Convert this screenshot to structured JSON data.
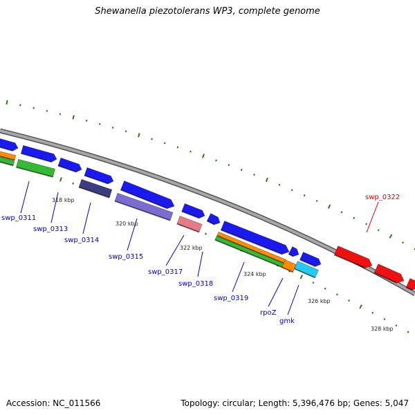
{
  "title": "Shewanella piezotolerans WP3, complete genome",
  "footer": {
    "accession": "Accession: NC_011566",
    "summary": "Topology: circular; Length: 5,396,476 bp; Genes: 5,047"
  },
  "colors": {
    "backbone": "#888888",
    "tick": "#2a7a14",
    "gene_label": "#0000cc",
    "highlight_label": "#dd0000",
    "blue": "#1a1aee",
    "green": "#33bb33",
    "orange": "#ff8c00",
    "dark_purple": "#3c3c80",
    "light_purple": "#7a6cd0",
    "pink": "#e67a86",
    "cyan": "#22ccf0",
    "red": "#ee1111"
  },
  "kbp_labels": [
    "318 kbp",
    "320 kbp",
    "322 kbp",
    "324 kbp",
    "326 kbp",
    "328 kbp"
  ],
  "gene_labels": [
    {
      "text": "swp_0311",
      "color": "blue"
    },
    {
      "text": "swp_0313",
      "color": "blue"
    },
    {
      "text": "swp_0314",
      "color": "blue"
    },
    {
      "text": "swp_0315",
      "color": "blue"
    },
    {
      "text": "swp_0317",
      "color": "blue"
    },
    {
      "text": "swp_0318",
      "color": "blue"
    },
    {
      "text": "swp_0319",
      "color": "blue"
    },
    {
      "text": "rpoZ",
      "color": "blue"
    },
    {
      "text": "gmk",
      "color": "blue"
    },
    {
      "text": "swp_0322",
      "color": "red"
    }
  ]
}
